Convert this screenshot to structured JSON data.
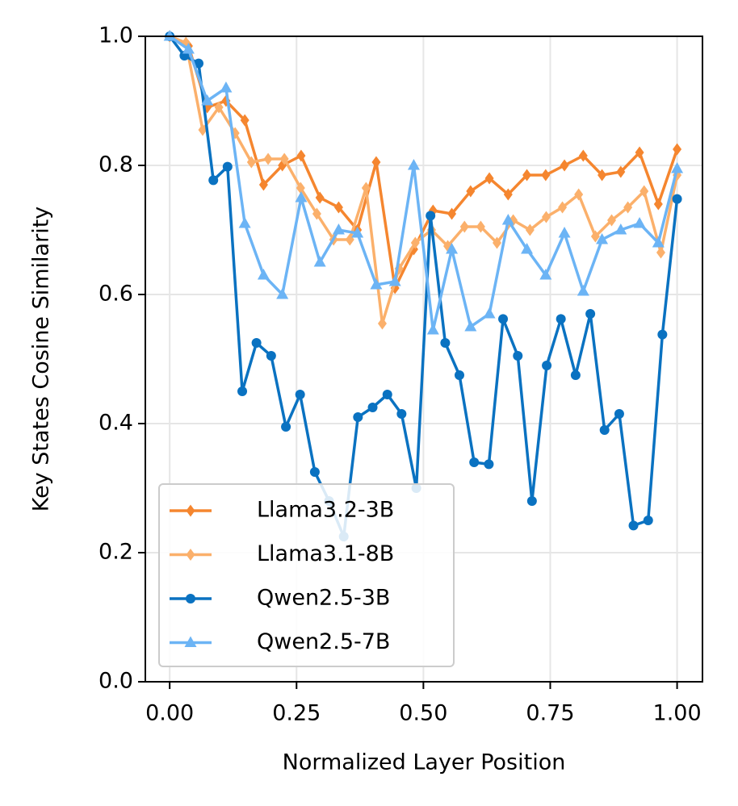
{
  "chart_data": {
    "type": "line",
    "xlabel": "Normalized Layer Position",
    "ylabel": "Key States Cosine Similarity",
    "xlim": [
      -0.048,
      1.05
    ],
    "ylim": [
      0,
      1
    ],
    "xticks": [
      {
        "value": 0,
        "label": "0.00"
      },
      {
        "value": 0.25,
        "label": "0.25"
      },
      {
        "value": 0.5,
        "label": "0.50"
      },
      {
        "value": 0.75,
        "label": "0.75"
      },
      {
        "value": 1,
        "label": "1.00"
      }
    ],
    "yticks": [
      {
        "value": 0,
        "label": "0.0"
      },
      {
        "value": 0.2,
        "label": "0.2"
      },
      {
        "value": 0.4,
        "label": "0.4"
      },
      {
        "value": 0.6,
        "label": "0.6"
      },
      {
        "value": 0.8,
        "label": "0.8"
      },
      {
        "value": 1,
        "label": "1.0"
      }
    ],
    "grid": true,
    "legend": "lower left",
    "series": [
      {
        "name": "Llama3.2-3B",
        "color": "#f5862f",
        "marker": "diamond",
        "x": [
          0,
          0.037,
          0.074,
          0.111,
          0.148,
          0.185,
          0.222,
          0.259,
          0.296,
          0.333,
          0.37,
          0.407,
          0.444,
          0.481,
          0.519,
          0.556,
          0.593,
          0.63,
          0.667,
          0.704,
          0.741,
          0.778,
          0.815,
          0.852,
          0.889,
          0.926,
          0.963,
          1
        ],
        "values": [
          1.0,
          0.985,
          0.89,
          0.9,
          0.87,
          0.77,
          0.8,
          0.815,
          0.75,
          0.735,
          0.7,
          0.805,
          0.61,
          0.67,
          0.73,
          0.725,
          0.76,
          0.78,
          0.755,
          0.785,
          0.785,
          0.8,
          0.815,
          0.785,
          0.79,
          0.82,
          0.74,
          0.825
        ]
      },
      {
        "name": "Llama3.1-8B",
        "color": "#fbb06b",
        "marker": "diamond",
        "x": [
          0,
          0.032,
          0.065,
          0.097,
          0.129,
          0.161,
          0.194,
          0.226,
          0.258,
          0.29,
          0.323,
          0.355,
          0.387,
          0.419,
          0.452,
          0.484,
          0.516,
          0.548,
          0.581,
          0.613,
          0.645,
          0.677,
          0.71,
          0.742,
          0.774,
          0.806,
          0.839,
          0.871,
          0.903,
          0.935,
          0.968,
          1
        ],
        "values": [
          1.0,
          0.99,
          0.855,
          0.89,
          0.85,
          0.805,
          0.81,
          0.81,
          0.765,
          0.725,
          0.685,
          0.685,
          0.765,
          0.555,
          0.64,
          0.68,
          0.7,
          0.675,
          0.705,
          0.705,
          0.68,
          0.715,
          0.7,
          0.72,
          0.735,
          0.755,
          0.69,
          0.715,
          0.735,
          0.76,
          0.665,
          0.785
        ]
      },
      {
        "name": "Qwen2.5-3B",
        "color": "#0a72c1",
        "marker": "circle",
        "x": [
          0,
          0.029,
          0.057,
          0.086,
          0.114,
          0.143,
          0.171,
          0.2,
          0.229,
          0.257,
          0.286,
          0.314,
          0.343,
          0.371,
          0.4,
          0.429,
          0.457,
          0.486,
          0.514,
          0.543,
          0.571,
          0.6,
          0.629,
          0.657,
          0.686,
          0.714,
          0.743,
          0.771,
          0.8,
          0.829,
          0.857,
          0.886,
          0.914,
          0.943,
          0.971,
          1
        ],
        "values": [
          1.0,
          0.97,
          0.958,
          0.777,
          0.798,
          0.45,
          0.525,
          0.505,
          0.395,
          0.445,
          0.325,
          0.28,
          0.225,
          0.41,
          0.425,
          0.445,
          0.415,
          0.3,
          0.722,
          0.525,
          0.475,
          0.34,
          0.337,
          0.562,
          0.505,
          0.28,
          0.49,
          0.562,
          0.475,
          0.57,
          0.39,
          0.415,
          0.242,
          0.25,
          0.538,
          0.748
        ]
      },
      {
        "name": "Qwen2.5-7B",
        "color": "#6cb4f5",
        "marker": "triangle",
        "x": [
          0,
          0.037,
          0.074,
          0.111,
          0.148,
          0.185,
          0.222,
          0.259,
          0.296,
          0.333,
          0.37,
          0.407,
          0.444,
          0.481,
          0.519,
          0.556,
          0.593,
          0.63,
          0.667,
          0.704,
          0.741,
          0.778,
          0.815,
          0.852,
          0.889,
          0.926,
          0.963,
          1
        ],
        "values": [
          1.0,
          0.98,
          0.9,
          0.92,
          0.71,
          0.63,
          0.6,
          0.75,
          0.65,
          0.7,
          0.695,
          0.615,
          0.62,
          0.8,
          0.545,
          0.67,
          0.55,
          0.57,
          0.715,
          0.67,
          0.63,
          0.695,
          0.605,
          0.685,
          0.7,
          0.71,
          0.68,
          0.795
        ]
      }
    ]
  }
}
